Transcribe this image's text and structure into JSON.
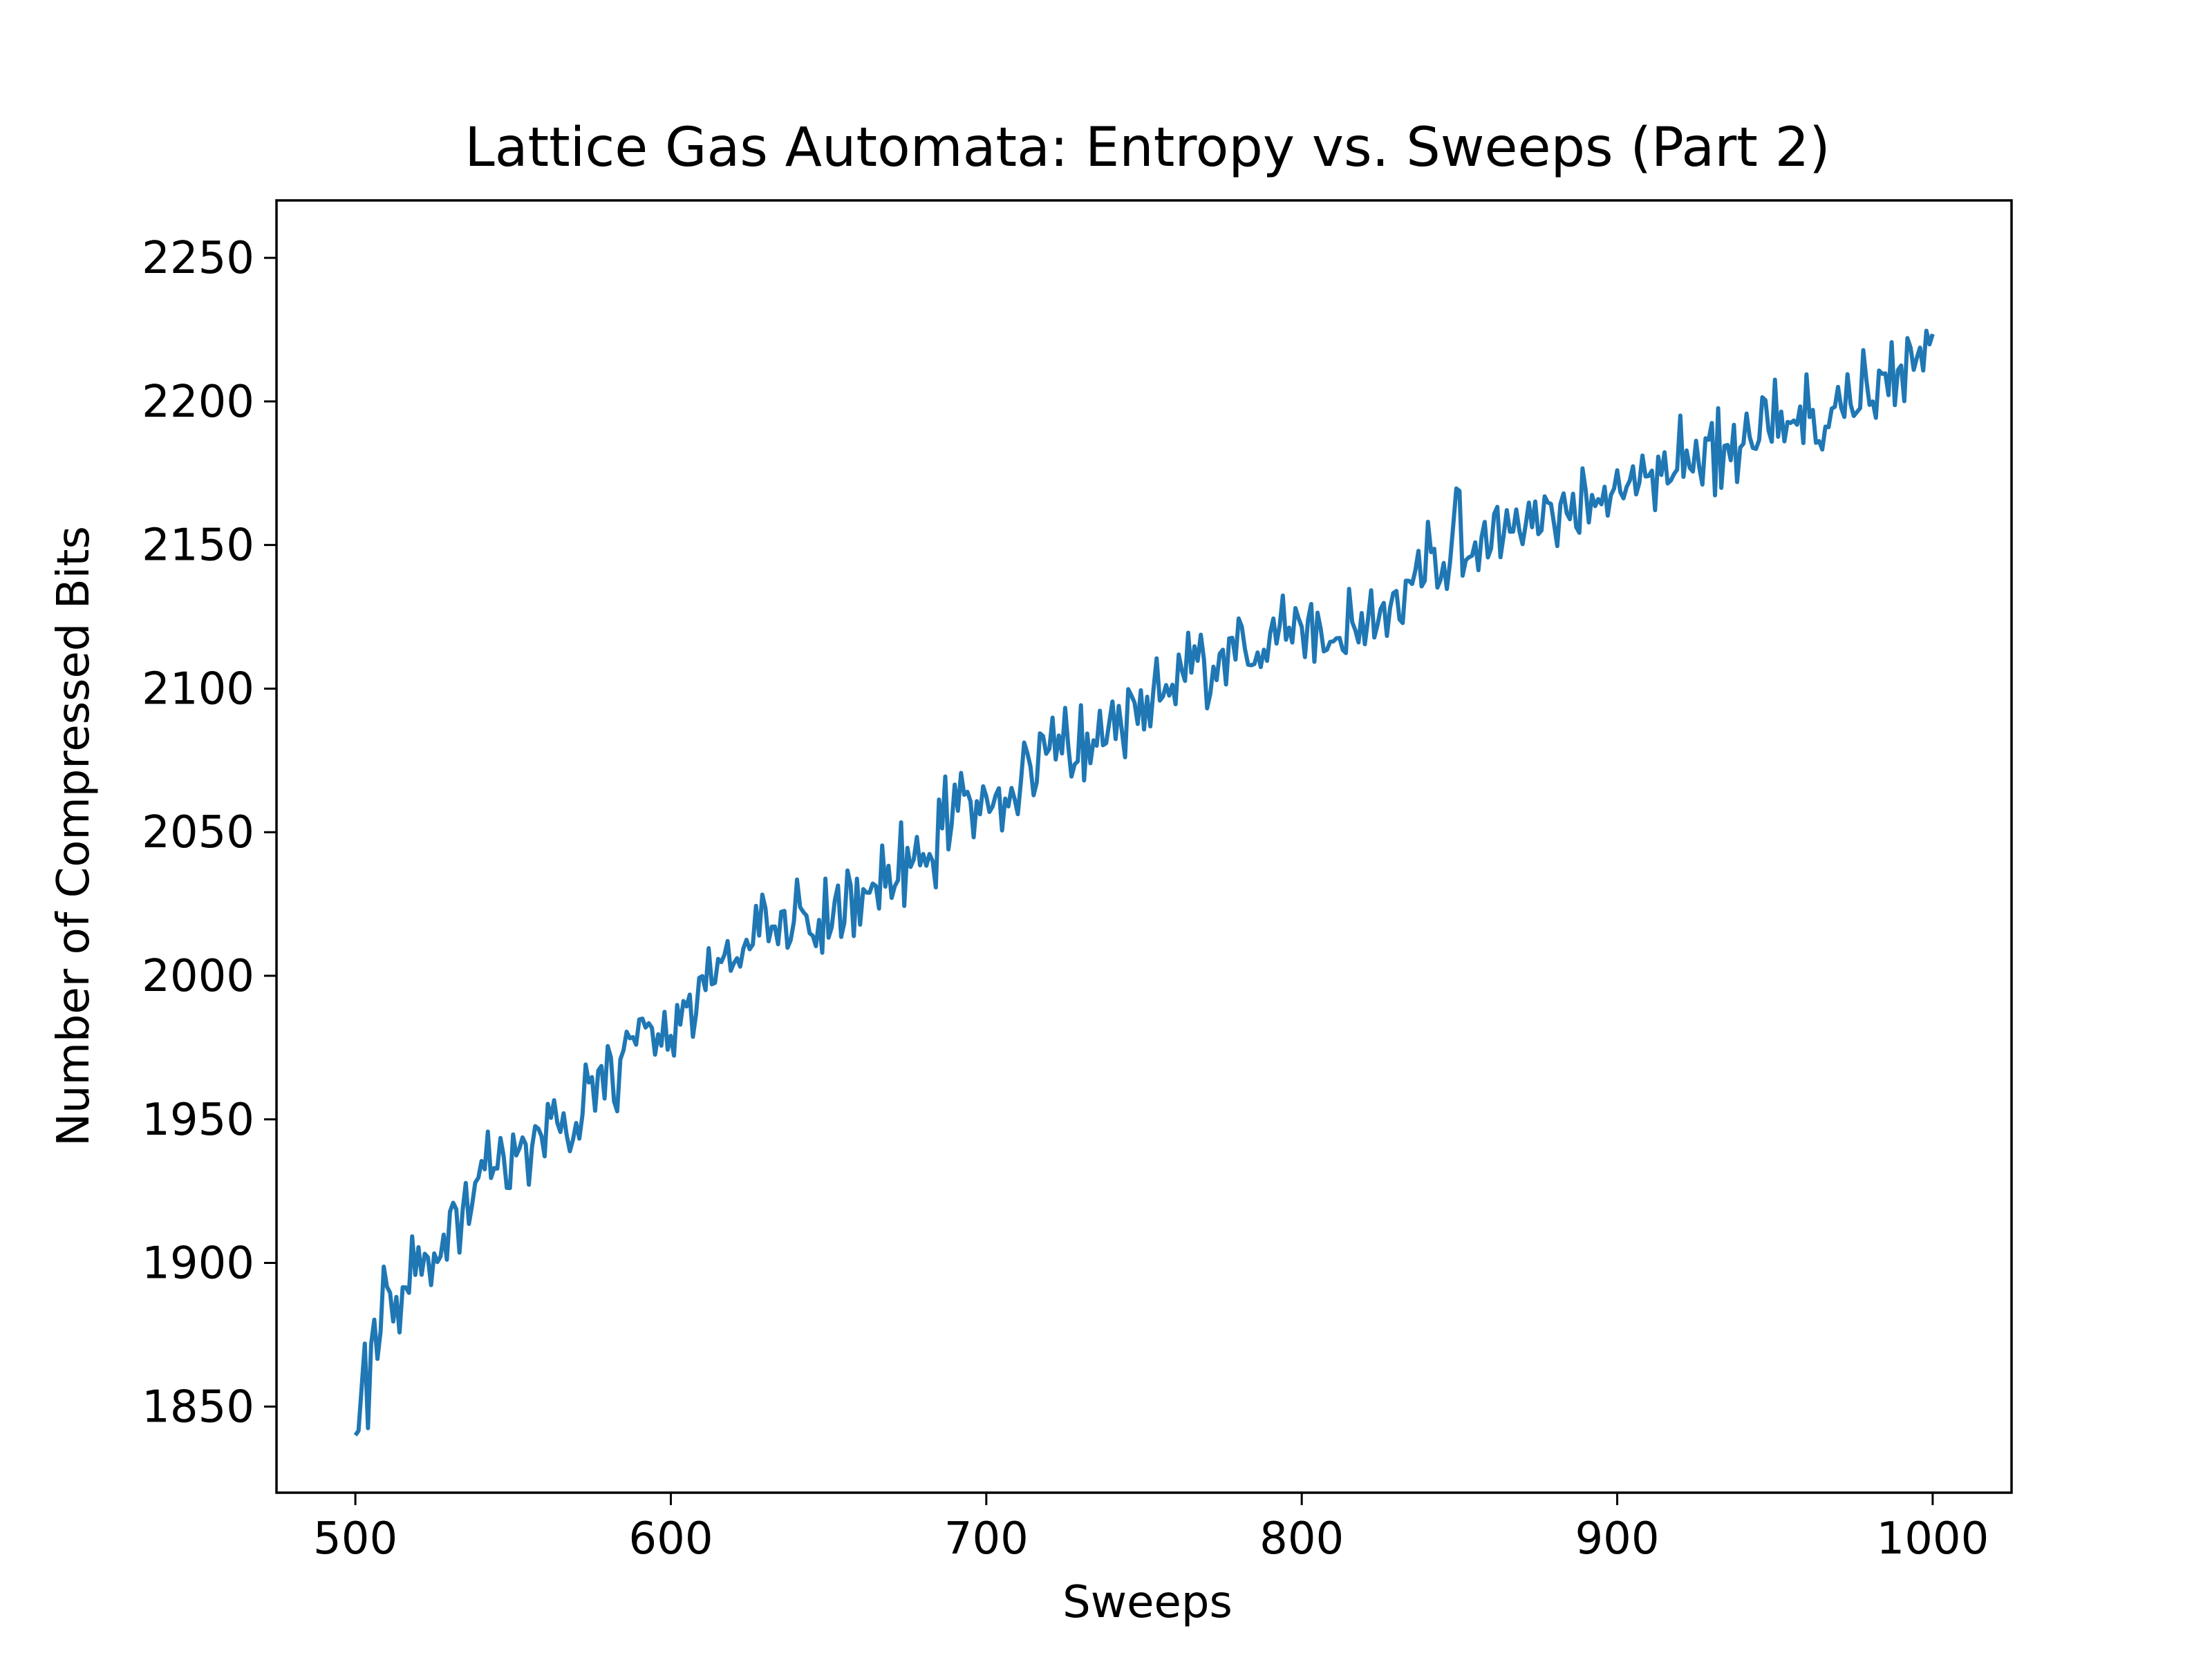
{
  "chart_data": {
    "type": "line",
    "title": "Lattice Gas Automata: Entropy vs. Sweeps (Part 2)",
    "xlabel": "Sweeps",
    "ylabel": "Number of Compressed Bits",
    "xlim": [
      475,
      1025
    ],
    "ylim": [
      1820,
      2270
    ],
    "xticks": [
      500,
      600,
      700,
      800,
      900,
      1000
    ],
    "yticks": [
      1850,
      1900,
      1950,
      2000,
      2050,
      2100,
      2150,
      2200,
      2250
    ],
    "grid": false,
    "legend": "none",
    "series": [
      {
        "color": "#1f77b4",
        "x_start": 500,
        "x_step": 1,
        "x_end": 1000,
        "anchors": [
          [
            500,
            1840
          ],
          [
            510,
            1890
          ],
          [
            520,
            1900
          ],
          [
            530,
            1905
          ],
          [
            540,
            1935
          ],
          [
            550,
            1935
          ],
          [
            560,
            1945
          ],
          [
            570,
            1955
          ],
          [
            580,
            1965
          ],
          [
            590,
            1975
          ],
          [
            600,
            1980
          ],
          [
            610,
            1995
          ],
          [
            620,
            2005
          ],
          [
            630,
            2015
          ],
          [
            640,
            2020
          ],
          [
            650,
            2025
          ],
          [
            660,
            2030
          ],
          [
            670,
            2035
          ],
          [
            680,
            2045
          ],
          [
            690,
            2055
          ],
          [
            700,
            2060
          ],
          [
            710,
            2070
          ],
          [
            720,
            2075
          ],
          [
            730,
            2080
          ],
          [
            740,
            2090
          ],
          [
            750,
            2095
          ],
          [
            760,
            2100
          ],
          [
            770,
            2105
          ],
          [
            780,
            2110
          ],
          [
            790,
            2115
          ],
          [
            800,
            2115
          ],
          [
            810,
            2120
          ],
          [
            820,
            2125
          ],
          [
            830,
            2130
          ],
          [
            840,
            2140
          ],
          [
            850,
            2150
          ],
          [
            860,
            2155
          ],
          [
            870,
            2165
          ],
          [
            880,
            2160
          ],
          [
            890,
            2165
          ],
          [
            900,
            2170
          ],
          [
            910,
            2175
          ],
          [
            920,
            2180
          ],
          [
            930,
            2185
          ],
          [
            940,
            2185
          ],
          [
            950,
            2190
          ],
          [
            960,
            2195
          ],
          [
            970,
            2200
          ],
          [
            980,
            2205
          ],
          [
            990,
            2210
          ],
          [
            1000,
            2220
          ]
        ],
        "noise_amplitude": 14
      }
    ]
  }
}
